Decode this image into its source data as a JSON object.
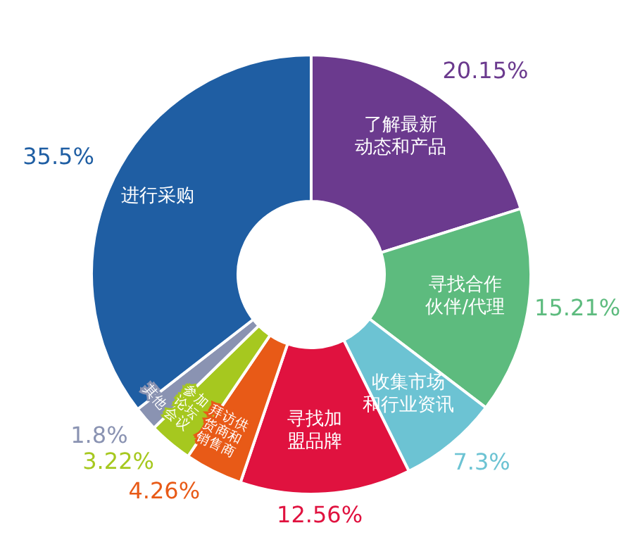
{
  "chart_data": {
    "type": "donut",
    "categories": [
      "了解最新动态和产品",
      "寻找合作伙伴/代理",
      "收集市场和行业资讯",
      "寻找加盟品牌",
      "拜访供货商和销售商",
      "参加论坛会议",
      "其他",
      "进行采购"
    ],
    "values": [
      20.15,
      15.21,
      7.3,
      12.56,
      4.26,
      3.22,
      1.8,
      35.5
    ],
    "value_labels": [
      "20.15%",
      "15.21%",
      "7.3%",
      "12.56%",
      "4.26%",
      "3.22%",
      "1.8%",
      "35.5%"
    ],
    "colors": [
      "#6b3a8e",
      "#5dbb7e",
      "#6cc3d3",
      "#e0123f",
      "#e85a17",
      "#a6c81f",
      "#8a93b2",
      "#1f5ea3"
    ]
  }
}
